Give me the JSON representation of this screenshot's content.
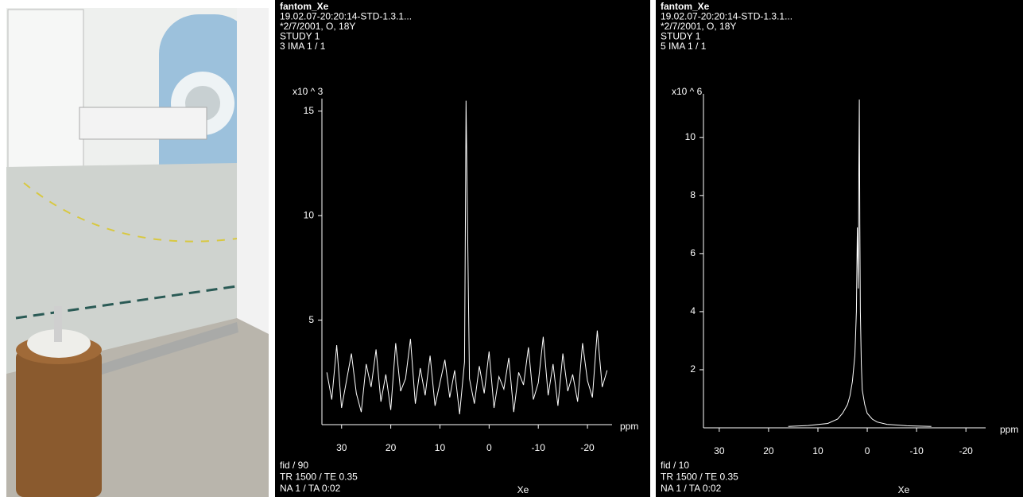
{
  "chart_data": [
    {
      "type": "line",
      "header": [
        "fantom_Xe",
        "19.02.07-20:20:14-STD-1.3.1...",
        "*2/7/2001, O, 18Y",
        "STUDY 1",
        "3 IMA 1 / 1"
      ],
      "multiplier": "x10 ^ 3",
      "x_unit": "ppm",
      "xlabel": "Xe",
      "footer": [
        "fid / 90",
        "TR 1500 / TE 0.35",
        "NA 1 / TA 0:02"
      ],
      "color": "#ffffff",
      "x": [
        33,
        32,
        31,
        30,
        29,
        28,
        27,
        26,
        25,
        24,
        23,
        22,
        21,
        20,
        19,
        18,
        17,
        16,
        15,
        14,
        13,
        12,
        11,
        10,
        9,
        8,
        7,
        6,
        5,
        4.8,
        4.7,
        4,
        3,
        2,
        1,
        0,
        -1,
        -2,
        -3,
        -4,
        -5,
        -6,
        -7,
        -8,
        -9,
        -10,
        -11,
        -12,
        -13,
        -14,
        -15,
        -16,
        -17,
        -18,
        -19,
        -20,
        -21,
        -22,
        -23,
        -24
      ],
      "values": [
        2.5,
        1.2,
        3.8,
        0.8,
        2.1,
        3.4,
        1.5,
        0.6,
        2.9,
        1.8,
        3.6,
        1.1,
        2.4,
        0.7,
        3.9,
        1.6,
        2.2,
        4.1,
        1.0,
        2.7,
        1.4,
        3.3,
        0.9,
        2.0,
        3.1,
        1.3,
        2.6,
        0.5,
        3.0,
        10.3,
        15.5,
        2.2,
        1.0,
        2.8,
        1.5,
        3.5,
        0.8,
        2.3,
        1.7,
        3.2,
        0.6,
        2.5,
        1.9,
        3.7,
        1.2,
        2.0,
        4.2,
        1.4,
        2.9,
        0.9,
        3.4,
        1.6,
        2.4,
        1.1,
        3.9,
        2.1,
        1.3,
        4.5,
        1.8,
        2.6
      ],
      "xlim": [
        34,
        -25
      ],
      "ylim": [
        0,
        15.6
      ],
      "xticks": [
        30,
        20,
        10,
        0,
        -10,
        -20
      ],
      "yticks": [
        5,
        10,
        15
      ]
    },
    {
      "type": "line",
      "header": [
        "fantom_Xe",
        "19.02.07-20:20:14-STD-1.3.1...",
        "*2/7/2001, O, 18Y",
        "STUDY 1",
        "5 IMA 1 / 1"
      ],
      "multiplier": "x10 ^ 6",
      "x_unit": "ppm",
      "xlabel": "Xe",
      "footer": [
        "fid / 10",
        "TR 1500 / TE 0.35",
        "NA 1 / TA 0:02"
      ],
      "color": "#ffffff",
      "x": [
        16,
        12,
        8,
        6,
        5,
        4,
        3.5,
        3,
        2.5,
        2.2,
        2,
        1.8,
        1.7,
        1.6,
        1.5,
        1.4,
        1.2,
        1,
        0.5,
        0,
        -1,
        -2,
        -4,
        -8,
        -13
      ],
      "values": [
        0.05,
        0.08,
        0.15,
        0.3,
        0.5,
        0.8,
        1.1,
        1.6,
        2.5,
        4.0,
        6.9,
        4.8,
        9.0,
        11.3,
        7.0,
        4.0,
        2.2,
        1.3,
        0.8,
        0.5,
        0.3,
        0.2,
        0.12,
        0.07,
        0.05
      ],
      "xlim": [
        33.2,
        -24
      ],
      "ylim": [
        0,
        11.5
      ],
      "xticks": [
        30,
        20,
        10,
        0,
        -10,
        -20
      ],
      "yticks": [
        2,
        4,
        6,
        8,
        10
      ]
    }
  ]
}
